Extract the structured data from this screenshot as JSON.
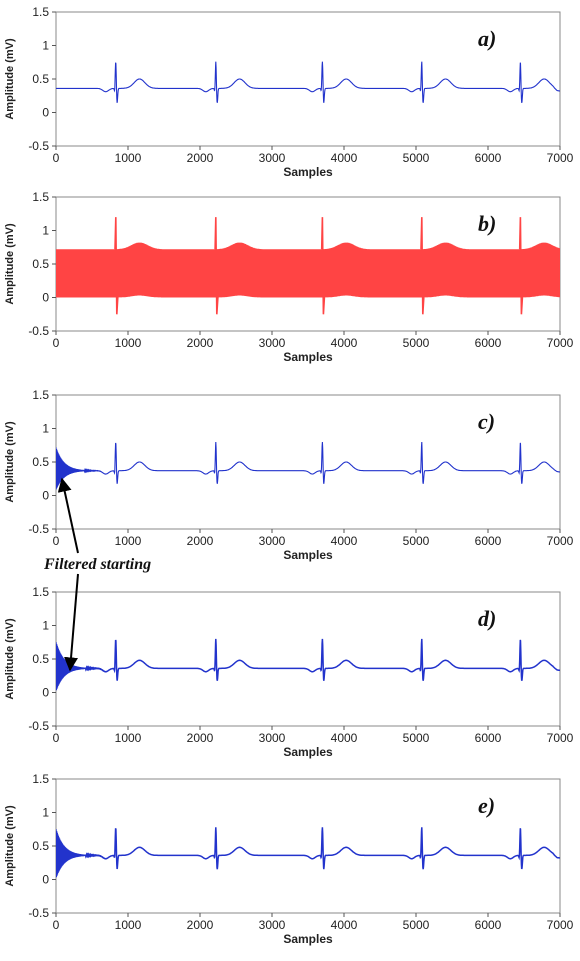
{
  "annotation": {
    "text": "Filtered starting"
  },
  "chart_data": [
    {
      "type": "line",
      "panel_label": "a)",
      "xlabel": "Samples",
      "ylabel": "Amplitude (mV)",
      "xlim": [
        0,
        7000
      ],
      "ylim": [
        -0.5,
        1.5
      ],
      "xticks": [
        "0",
        "1000",
        "2000",
        "3000",
        "4000",
        "5000",
        "6000",
        "7000"
      ],
      "yticks": [
        "-0.5",
        "0",
        "0.5",
        "1",
        "1.5"
      ],
      "color": "#2233cc",
      "style": "clean",
      "baseline": 0.36,
      "r_peak": 0.78,
      "s_trough": 0.13,
      "t_peak": 0.5,
      "r_positions": [
        830,
        2220,
        3700,
        5080,
        6450
      ],
      "end_value": 0.32
    },
    {
      "type": "line",
      "panel_label": "b)",
      "xlabel": "Samples",
      "ylabel": "Amplitude (mV)",
      "xlim": [
        0,
        7000
      ],
      "ylim": [
        -0.5,
        1.5
      ],
      "xticks": [
        "0",
        "1000",
        "2000",
        "3000",
        "4000",
        "5000",
        "6000",
        "7000"
      ],
      "yticks": [
        "-0.5",
        "0",
        "0.5",
        "1",
        "1.5"
      ],
      "color": "#ff4444",
      "style": "noisy_band",
      "band_low": 0.0,
      "band_high": 0.72,
      "r_peak": 1.2,
      "s_trough": -0.25,
      "t_bump": 0.1,
      "r_positions": [
        830,
        2220,
        3700,
        5080,
        6450
      ]
    },
    {
      "type": "line",
      "panel_label": "c)",
      "xlabel": "Samples",
      "ylabel": "Amplitude (mV)",
      "xlim": [
        0,
        7000
      ],
      "ylim": [
        -0.5,
        1.5
      ],
      "xticks": [
        "0",
        "1000",
        "2000",
        "3000",
        "4000",
        "5000",
        "6000",
        "7000"
      ],
      "yticks": [
        "-0.5",
        "0",
        "0.5",
        "1",
        "1.5"
      ],
      "color": "#2233cc",
      "style": "filtered_transient",
      "baseline": 0.37,
      "r_peak": 0.82,
      "s_trough": 0.16,
      "t_peak": 0.5,
      "start_high": 0.72,
      "start_low": 0.08,
      "r_positions": [
        830,
        2220,
        3700,
        5080,
        6450
      ],
      "end_value": 0.35
    },
    {
      "type": "line",
      "panel_label": "d)",
      "xlabel": "Samples",
      "ylabel": "Amplitude (mV)",
      "xlim": [
        0,
        7000
      ],
      "ylim": [
        -0.5,
        1.5
      ],
      "xticks": [
        "0",
        "1000",
        "2000",
        "3000",
        "4000",
        "5000",
        "6000",
        "7000"
      ],
      "yticks": [
        "-0.5",
        "0",
        "0.5",
        "1",
        "1.5"
      ],
      "color": "#2233cc",
      "style": "filtered_transient",
      "baseline": 0.36,
      "r_peak": 0.82,
      "s_trough": 0.16,
      "t_peak": 0.48,
      "start_high": 0.75,
      "start_low": 0.02,
      "r_positions": [
        830,
        2220,
        3700,
        5080,
        6450
      ],
      "end_value": 0.33
    },
    {
      "type": "line",
      "panel_label": "e)",
      "xlabel": "Samples",
      "ylabel": "Amplitude (mV)",
      "xlim": [
        0,
        7000
      ],
      "ylim": [
        -0.5,
        1.5
      ],
      "xticks": [
        "0",
        "1000",
        "2000",
        "3000",
        "4000",
        "5000",
        "6000",
        "7000"
      ],
      "yticks": [
        "-0.5",
        "0",
        "0.5",
        "1",
        "1.5"
      ],
      "color": "#2233cc",
      "style": "filtered_transient",
      "baseline": 0.36,
      "r_peak": 0.8,
      "s_trough": 0.14,
      "t_peak": 0.48,
      "start_high": 0.75,
      "start_low": 0.02,
      "r_positions": [
        830,
        2220,
        3700,
        5080,
        6450
      ],
      "end_value": 0.32
    }
  ]
}
